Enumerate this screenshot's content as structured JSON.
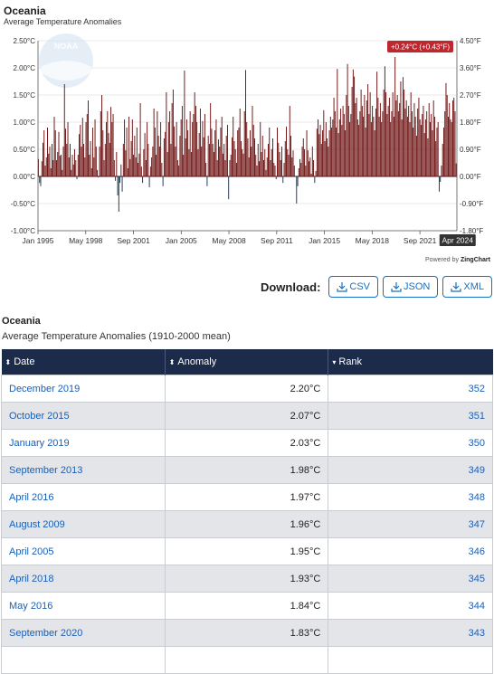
{
  "chart_data": {
    "type": "bar",
    "title": "Oceania",
    "subtitle": "Average Temperature Anomalies",
    "logo_text": "NOAA",
    "y_left_ticks": [
      "2.50°C",
      "2.00°C",
      "1.50°C",
      "1.00°C",
      "0.50°C",
      "0.00°C",
      "-0.50°C",
      "-1.00°C"
    ],
    "y_right_ticks": [
      "4.50°F",
      "3.60°F",
      "2.70°F",
      "1.80°F",
      "0.90°F",
      "0.00°F",
      "-0.90°F",
      "-1.80°F"
    ],
    "ylim": [
      -1.0,
      2.5
    ],
    "x_ticks": [
      "Jan 1995",
      "May 1998",
      "Sep 2001",
      "Jan 2005",
      "May 2008",
      "Sep 2011",
      "Jan 2015",
      "May 2018",
      "Sep 2021"
    ],
    "x_tick_dates": [
      1995.0,
      1998.333,
      2001.667,
      2005.0,
      2008.333,
      2011.667,
      2015.0,
      2018.333,
      2021.667
    ],
    "xlim": [
      1995.0,
      2024.25
    ],
    "grid": true,
    "positive_color": "#6e1212",
    "negative_color": "#1c3553",
    "highlight": {
      "label": "Apr 2024",
      "tooltip": "+0.24°C (+0.43°F)"
    },
    "series": [
      {
        "values": [
          0.32,
          -0.12,
          -0.18,
          0.28,
          0.62,
          0.85,
          0.2,
          0.35,
          0.9,
          0.42,
          0.55,
          0.15,
          0.6,
          0.3,
          1.1,
          0.85,
          0.3,
          0.45,
          0.82,
          0.38,
          0.4,
          0.12,
          0.55,
          1.7,
          0.88,
          0.6,
          1.0,
          0.35,
          0.6,
          0.12,
          0.4,
          0.22,
          0.5,
          0.3,
          -0.05,
          0.4,
          0.78,
          0.95,
          0.55,
          1.08,
          0.6,
          0.35,
          1.0,
          1.15,
          1.4,
          0.4,
          0.65,
          0.15,
          0.9,
          0.35,
          1.05,
          0.55,
          0.12,
          -0.02,
          0.55,
          1.2,
          1.5,
          0.85,
          0.3,
          0.6,
          1.0,
          1.2,
          0.8,
          0.62,
          1.28,
          1.0,
          1.15,
          0.3,
          -0.08,
          0.45,
          -0.35,
          -0.65,
          -0.12,
          0.22,
          -0.28,
          0.6,
          1.05,
          0.48,
          0.9,
          0.15,
          1.1,
          0.32,
          0.65,
          1.05,
          0.4,
          0.75,
          0.35,
          0.9,
          0.25,
          0.42,
          1.35,
          0.18,
          -0.12,
          0.5,
          0.8,
          0.3,
          1.0,
          0.6,
          -0.2,
          0.18,
          0.35,
          0.55,
          1.25,
          0.9,
          0.4,
          1.2,
          0.75,
          0.55,
          1.0,
          0.25,
          -0.18,
          0.7,
          0.82,
          1.55,
          0.45,
          1.0,
          1.2,
          0.6,
          1.35,
          1.6,
          0.92,
          0.55,
          1.0,
          0.3,
          0.2,
          0.75,
          1.05,
          1.3,
          0.4,
          1.95,
          0.7,
          1.05,
          0.85,
          0.5,
          1.2,
          0.45,
          1.0,
          1.15,
          1.55,
          1.3,
          1.0,
          0.5,
          0.8,
          1.25,
          0.55,
          1.02,
          0.72,
          1.15,
          0.25,
          -0.18,
          0.75,
          0.6,
          1.35,
          0.88,
          0.6,
          0.45,
          0.85,
          1.05,
          0.3,
          0.68,
          0.55,
          0.9,
          1.1,
          0.42,
          0.6,
          0.3,
          0.75,
          0.95,
          -0.42,
          0.3,
          0.4,
          0.72,
          1.1,
          0.65,
          0.5,
          0.25,
          0.85,
          0.9,
          1.25,
          0.65,
          0.5,
          0.42,
          1.2,
          1.96,
          1.0,
          0.7,
          0.35,
          0.85,
          0.55,
          1.3,
          0.95,
          0.7,
          0.4,
          0.2,
          0.6,
          0.28,
          1.0,
          0.45,
          0.75,
          0.3,
          0.5,
          0.12,
          0.35,
          0.6,
          0.9,
          0.3,
          0.5,
          0.7,
          0.25,
          0.2,
          -0.05,
          0.9,
          0.62,
          0.45,
          0.3,
          0.55,
          -0.12,
          0.25,
          0.65,
          0.92,
          0.5,
          0.4,
          1.3,
          0.75,
          0.35,
          0.48,
          0.2,
          0.0,
          -0.5,
          -0.18,
          0.15,
          0.32,
          0.25,
          0.55,
          0.7,
          0.5,
          0.2,
          0.85,
          0.48,
          0.28,
          0.35,
          0.05,
          0.55,
          0.3,
          -0.12,
          0.1,
          0.88,
          1.05,
          0.78,
          0.95,
          0.6,
          0.85,
          1.22,
          0.65,
          1.0,
          0.7,
          0.55,
          0.85,
          1.1,
          0.9,
          1.05,
          1.45,
          1.2,
          0.9,
          1.98,
          0.8,
          1.05,
          1.25,
          0.95,
          1.3,
          1.15,
          0.85,
          1.5,
          2.07,
          1.3,
          1.0,
          1.15,
          1.65,
          1.97,
          1.84,
          1.35,
          1.45,
          1.05,
          0.95,
          1.2,
          1.6,
          1.3,
          1.1,
          1.5,
          0.9,
          1.4,
          1.7,
          1.15,
          1.55,
          1.0,
          1.3,
          1.1,
          0.85,
          1.25,
          1.93,
          1.45,
          1.1,
          1.35,
          1.0,
          1.2,
          1.6,
          2.03,
          1.55,
          1.15,
          1.3,
          1.45,
          1.0,
          1.2,
          1.55,
          1.1,
          2.2,
          1.4,
          1.5,
          1.2,
          1.35,
          1.75,
          1.05,
          1.83,
          1.6,
          1.25,
          1.4,
          1.1,
          1.3,
          1.0,
          1.55,
          1.2,
          0.9,
          1.35,
          1.1,
          0.75,
          1.25,
          1.45,
          1.05,
          0.95,
          1.15,
          1.3,
          0.8,
          1.05,
          1.2,
          0.7,
          1.35,
          1.0,
          1.15,
          0.85,
          1.4,
          1.1,
          0.65,
          0.9,
          1.0,
          -0.28,
          -0.1,
          0.2,
          0.6,
          0.9,
          1.2,
          1.72,
          1.5,
          1.1,
          1.35,
          1.05,
          1.0,
          1.4,
          1.45,
          1.2,
          0.24
        ]
      }
    ]
  },
  "powered_by": {
    "prefix": "Powered by",
    "brand": "ZingChart"
  },
  "download": {
    "label": "Download:",
    "buttons": [
      {
        "label": "CSV"
      },
      {
        "label": "JSON"
      },
      {
        "label": "XML"
      }
    ]
  },
  "table": {
    "title": "Oceania",
    "subtitle": "Average Temperature Anomalies (1910-2000 mean)",
    "columns": [
      {
        "label": "Date",
        "sort_glyph": "⬍"
      },
      {
        "label": "Anomaly",
        "sort_glyph": "⬍"
      },
      {
        "label": "Rank",
        "sort_glyph": "▾"
      }
    ],
    "rows": [
      {
        "date": "December 2019",
        "anomaly": "2.20°C",
        "rank": "352"
      },
      {
        "date": "October 2015",
        "anomaly": "2.07°C",
        "rank": "351"
      },
      {
        "date": "January 2019",
        "anomaly": "2.03°C",
        "rank": "350"
      },
      {
        "date": "September 2013",
        "anomaly": "1.98°C",
        "rank": "349"
      },
      {
        "date": "April 2016",
        "anomaly": "1.97°C",
        "rank": "348"
      },
      {
        "date": "August 2009",
        "anomaly": "1.96°C",
        "rank": "347"
      },
      {
        "date": "April 2005",
        "anomaly": "1.95°C",
        "rank": "346"
      },
      {
        "date": "April 2018",
        "anomaly": "1.93°C",
        "rank": "345"
      },
      {
        "date": "May 2016",
        "anomaly": "1.84°C",
        "rank": "344"
      },
      {
        "date": "September 2020",
        "anomaly": "1.83°C",
        "rank": "343"
      },
      {
        "date": "",
        "anomaly": "",
        "rank": ""
      }
    ]
  }
}
